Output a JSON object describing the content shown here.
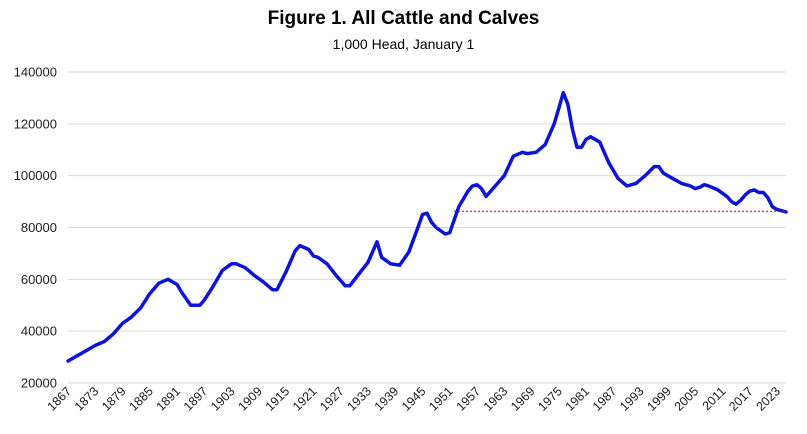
{
  "chart_data": {
    "type": "line",
    "title": "Figure 1. All Cattle and Calves",
    "subtitle": "1,000 Head, January 1",
    "xlabel": "",
    "ylabel": "",
    "ylim": [
      20000,
      140000
    ],
    "xlim": [
      1867,
      2025
    ],
    "yticks": [
      "140000",
      "120000",
      "100000",
      "80000",
      "60000",
      "40000",
      "20000"
    ],
    "xticks": [
      "1867",
      "1873",
      "1879",
      "1885",
      "1891",
      "1897",
      "1903",
      "1909",
      "1915",
      "1921",
      "1927",
      "1933",
      "1939",
      "1945",
      "1951",
      "1957",
      "1963",
      "1969",
      "1975",
      "1981",
      "1987",
      "1993",
      "1999",
      "2005",
      "2011",
      "2017",
      "2023"
    ],
    "grid": "horizontal",
    "colors": {
      "series": "#0b14d8",
      "reference": "#e0001b",
      "grid": "#d9d9d9"
    },
    "series": [
      {
        "style": "solid",
        "x": [
          1867,
          1869,
          1871,
          1873,
          1875,
          1877,
          1879,
          1881,
          1883,
          1885,
          1887,
          1889,
          1891,
          1892,
          1894,
          1896,
          1897,
          1899,
          1901,
          1903,
          1904,
          1906,
          1908,
          1910,
          1912,
          1913,
          1915,
          1917,
          1918,
          1920,
          1921,
          1922,
          1924,
          1926,
          1928,
          1929,
          1931,
          1933,
          1934,
          1935,
          1936,
          1938,
          1940,
          1942,
          1944,
          1945,
          1946,
          1947,
          1948,
          1950,
          1951,
          1953,
          1955,
          1956,
          1957,
          1958,
          1959,
          1961,
          1963,
          1965,
          1967,
          1968,
          1970,
          1972,
          1974,
          1975,
          1976,
          1977,
          1978,
          1979,
          1980,
          1981,
          1982,
          1984,
          1986,
          1988,
          1990,
          1992,
          1994,
          1996,
          1997,
          1998,
          2000,
          2002,
          2004,
          2005,
          2006,
          2007,
          2008,
          2010,
          2012,
          2013,
          2014,
          2015,
          2016,
          2017,
          2018,
          2019,
          2020,
          2021,
          2022,
          2023,
          2024,
          2025
        ],
        "values": [
          28500,
          30500,
          32500,
          34500,
          36000,
          39000,
          43000,
          45500,
          49000,
          54500,
          58500,
          60000,
          58000,
          55000,
          50000,
          50000,
          52000,
          57500,
          63500,
          66000,
          66000,
          64500,
          61500,
          59000,
          56000,
          56000,
          63000,
          71000,
          73000,
          71500,
          69000,
          68500,
          66000,
          61500,
          57500,
          57500,
          62000,
          66500,
          70500,
          74500,
          68500,
          66000,
          65500,
          70500,
          80000,
          85000,
          85500,
          82000,
          80000,
          77500,
          78000,
          88000,
          94000,
          96000,
          96500,
          95000,
          92000,
          96000,
          100000,
          107500,
          109000,
          108500,
          109000,
          112000,
          120000,
          126000,
          132000,
          127500,
          118000,
          111000,
          111000,
          114000,
          115000,
          113000,
          105000,
          99000,
          96000,
          97000,
          100000,
          103500,
          103500,
          101000,
          99000,
          97000,
          96000,
          95000,
          95500,
          96500,
          96000,
          94500,
          92000,
          90000,
          89000,
          90500,
          92500,
          94000,
          94500,
          93500,
          93500,
          91500,
          88000,
          87000,
          86500,
          86000
        ]
      },
      {
        "style": "dotted",
        "x": [
          1952,
          2025
        ],
        "values": [
          86200,
          86200
        ]
      }
    ]
  }
}
